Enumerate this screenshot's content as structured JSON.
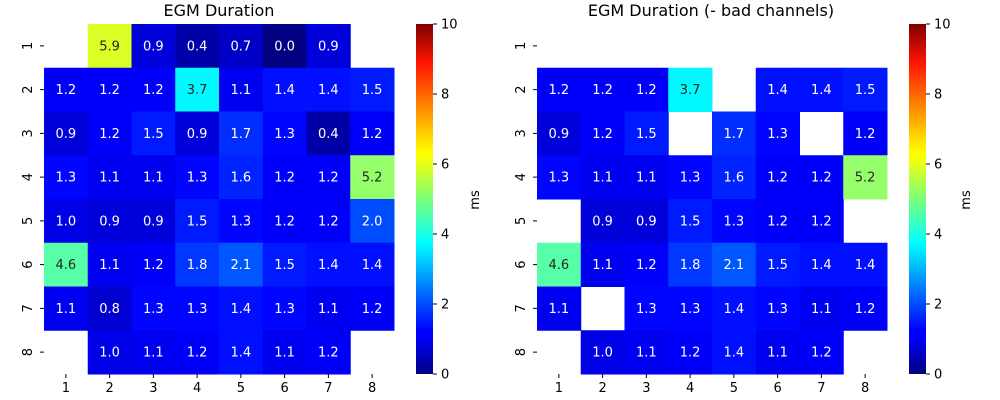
{
  "chart_data": [
    {
      "type": "heatmap",
      "title": "EGM Duration",
      "x_ticks": [
        "1",
        "2",
        "3",
        "4",
        "5",
        "6",
        "7",
        "8"
      ],
      "y_ticks": [
        "1",
        "2",
        "3",
        "4",
        "5",
        "6",
        "7",
        "8"
      ],
      "values": [
        [
          null,
          5.9,
          0.9,
          0.4,
          0.7,
          0.0,
          0.9,
          null
        ],
        [
          1.2,
          1.2,
          1.2,
          3.7,
          1.1,
          1.4,
          1.4,
          1.5
        ],
        [
          0.9,
          1.2,
          1.5,
          0.9,
          1.7,
          1.3,
          0.4,
          1.2
        ],
        [
          1.3,
          1.1,
          1.1,
          1.3,
          1.6,
          1.2,
          1.2,
          5.2
        ],
        [
          1.0,
          0.9,
          0.9,
          1.5,
          1.3,
          1.2,
          1.2,
          2.0
        ],
        [
          4.6,
          1.1,
          1.2,
          1.8,
          2.1,
          1.5,
          1.4,
          1.4
        ],
        [
          1.1,
          0.8,
          1.3,
          1.3,
          1.4,
          1.3,
          1.1,
          1.2
        ],
        [
          null,
          1.0,
          1.1,
          1.2,
          1.4,
          1.1,
          1.2,
          null
        ]
      ],
      "colormap": "jet",
      "vmin": 0,
      "vmax": 10,
      "colorbar_ticks": [
        "0",
        "2",
        "4",
        "6",
        "8",
        "10"
      ],
      "colorbar_label": "ms"
    },
    {
      "type": "heatmap",
      "title": "EGM Duration (- bad channels)",
      "x_ticks": [
        "1",
        "2",
        "3",
        "4",
        "5",
        "6",
        "7",
        "8"
      ],
      "y_ticks": [
        "1",
        "2",
        "3",
        "4",
        "5",
        "6",
        "7",
        "8"
      ],
      "values": [
        [
          null,
          null,
          null,
          null,
          null,
          null,
          null,
          null
        ],
        [
          1.2,
          1.2,
          1.2,
          3.7,
          null,
          1.4,
          1.4,
          1.5
        ],
        [
          0.9,
          1.2,
          1.5,
          null,
          1.7,
          1.3,
          null,
          1.2
        ],
        [
          1.3,
          1.1,
          1.1,
          1.3,
          1.6,
          1.2,
          1.2,
          5.2
        ],
        [
          null,
          0.9,
          0.9,
          1.5,
          1.3,
          1.2,
          1.2,
          null
        ],
        [
          4.6,
          1.1,
          1.2,
          1.8,
          2.1,
          1.5,
          1.4,
          1.4
        ],
        [
          1.1,
          null,
          1.3,
          1.3,
          1.4,
          1.3,
          1.1,
          1.2
        ],
        [
          null,
          1.0,
          1.1,
          1.2,
          1.4,
          1.1,
          1.2,
          null
        ]
      ],
      "colormap": "jet",
      "vmin": 0,
      "vmax": 10,
      "colorbar_ticks": [
        "0",
        "2",
        "4",
        "6",
        "8",
        "10"
      ],
      "colorbar_label": "ms"
    }
  ]
}
